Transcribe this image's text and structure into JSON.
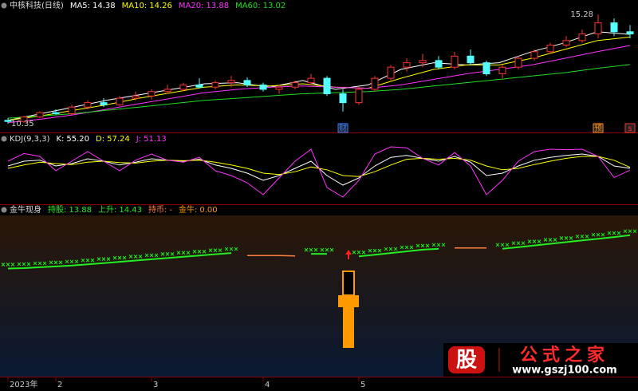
{
  "chart_data": [
    {
      "type": "candlestick",
      "title": "中核科技(日线)",
      "ylim": [
        10.17,
        15.5
      ],
      "up_color": "#ff3232",
      "down_color": "#54ffff",
      "candles": [
        [
          10.5,
          10.6,
          10.35,
          10.45
        ],
        [
          10.45,
          10.7,
          10.4,
          10.65
        ],
        [
          10.65,
          10.9,
          10.6,
          10.85
        ],
        [
          10.85,
          11.0,
          10.75,
          10.8
        ],
        [
          10.8,
          11.2,
          10.75,
          11.1
        ],
        [
          11.1,
          11.4,
          11.0,
          11.3
        ],
        [
          11.3,
          11.5,
          11.1,
          11.2
        ],
        [
          11.2,
          11.6,
          11.15,
          11.5
        ],
        [
          11.5,
          11.8,
          11.4,
          11.6
        ],
        [
          11.6,
          11.9,
          11.45,
          11.8
        ],
        [
          11.8,
          12.1,
          11.7,
          11.9
        ],
        [
          11.9,
          12.2,
          11.8,
          12.1
        ],
        [
          12.1,
          12.4,
          11.95,
          12.0
        ],
        [
          12.0,
          12.3,
          11.9,
          12.2
        ],
        [
          12.2,
          12.5,
          12.0,
          12.3
        ],
        [
          12.3,
          12.45,
          12.0,
          12.1
        ],
        [
          12.1,
          12.2,
          11.8,
          11.9
        ],
        [
          11.9,
          12.1,
          11.7,
          12.0
        ],
        [
          12.0,
          12.3,
          11.9,
          12.2
        ],
        [
          12.2,
          12.6,
          12.1,
          12.4
        ],
        [
          12.4,
          12.5,
          11.6,
          11.7
        ],
        [
          11.7,
          11.9,
          10.9,
          11.3
        ],
        [
          11.3,
          12.0,
          11.2,
          11.9
        ],
        [
          11.9,
          12.5,
          11.8,
          12.4
        ],
        [
          12.4,
          13.0,
          12.3,
          12.9
        ],
        [
          12.9,
          13.3,
          12.7,
          13.1
        ],
        [
          13.1,
          13.5,
          12.9,
          13.2
        ],
        [
          13.2,
          13.4,
          12.8,
          12.9
        ],
        [
          12.9,
          13.6,
          12.8,
          13.4
        ],
        [
          13.4,
          13.7,
          13.0,
          13.1
        ],
        [
          13.1,
          13.2,
          12.5,
          12.6
        ],
        [
          12.6,
          13.0,
          12.4,
          12.9
        ],
        [
          12.9,
          13.4,
          12.8,
          13.3
        ],
        [
          13.3,
          13.7,
          13.2,
          13.6
        ],
        [
          13.6,
          14.0,
          13.5,
          13.9
        ],
        [
          13.9,
          14.3,
          13.8,
          14.1
        ],
        [
          14.1,
          14.6,
          14.0,
          14.4
        ],
        [
          14.4,
          15.28,
          14.2,
          14.9
        ],
        [
          14.9,
          15.1,
          14.3,
          14.5
        ],
        [
          14.5,
          14.8,
          14.2,
          14.4
        ]
      ],
      "high_mark": {
        "value": 15.28,
        "index": 37
      },
      "low_mark": {
        "value": 10.35,
        "index": 0
      },
      "ma": [
        {
          "name": "MA5:",
          "color": "#ffffff",
          "value": 14.38,
          "values": [
            10.5,
            10.8,
            11.1,
            11.4,
            11.65,
            11.9,
            12.15,
            12.2,
            12.0,
            12.3,
            11.9,
            12.1,
            12.8,
            13.1,
            13.0,
            13.1,
            13.6,
            14.0,
            14.5,
            14.38
          ]
        },
        {
          "name": "MA10:",
          "color": "#ffff00",
          "value": 14.26,
          "values": [
            10.5,
            10.7,
            10.95,
            11.2,
            11.5,
            11.75,
            12.0,
            12.1,
            12.05,
            12.15,
            12.0,
            11.95,
            12.4,
            12.8,
            13.0,
            13.0,
            13.3,
            13.7,
            14.1,
            14.26
          ]
        },
        {
          "name": "MA20:",
          "color": "#ff33ff",
          "value": 13.88,
          "values": [
            10.4,
            10.55,
            10.75,
            11.0,
            11.25,
            11.5,
            11.75,
            11.9,
            12.0,
            12.05,
            12.0,
            11.95,
            12.1,
            12.35,
            12.6,
            12.8,
            13.0,
            13.3,
            13.6,
            13.88
          ]
        },
        {
          "name": "MA60:",
          "color": "#22dd22",
          "value": 13.02,
          "values": [
            10.6,
            10.7,
            10.8,
            10.95,
            11.1,
            11.25,
            11.4,
            11.5,
            11.6,
            11.7,
            11.75,
            11.8,
            11.9,
            12.05,
            12.2,
            12.35,
            12.5,
            12.65,
            12.85,
            13.02
          ]
        }
      ],
      "events": [
        {
          "label": "财",
          "index": 21,
          "color": "#3a7dff"
        },
        {
          "label": "预",
          "index": 37,
          "color": "#ff8c1a"
        },
        {
          "label": "s",
          "index": 39,
          "color": "#ff3232"
        }
      ],
      "months": [
        {
          "label": "2023年",
          "index": 0
        },
        {
          "label": "2",
          "index": 3
        },
        {
          "label": "3",
          "index": 9
        },
        {
          "label": "4",
          "index": 16
        },
        {
          "label": "5",
          "index": 22
        }
      ]
    },
    {
      "type": "line",
      "title": "KDJ(9,3,3)",
      "ylim": [
        -10,
        110
      ],
      "series": [
        {
          "name": "K:",
          "color": "#ffffff",
          "value": 55.2,
          "value_label": "55.20",
          "values": [
            60,
            70,
            72,
            60,
            65,
            75,
            70,
            62,
            68,
            75,
            72,
            70,
            74,
            62,
            55,
            45,
            30,
            40,
            55,
            70,
            40,
            20,
            35,
            60,
            78,
            82,
            76,
            70,
            80,
            68,
            40,
            45,
            60,
            72,
            78,
            82,
            85,
            80,
            60,
            55.2
          ]
        },
        {
          "name": "D:",
          "color": "#ffff00",
          "value": 57.24,
          "values": [
            55,
            62,
            68,
            65,
            63,
            68,
            70,
            67,
            66,
            70,
            72,
            71,
            72,
            68,
            62,
            55,
            45,
            42,
            48,
            58,
            52,
            40,
            38,
            48,
            62,
            74,
            76,
            74,
            76,
            72,
            60,
            52,
            55,
            63,
            70,
            76,
            80,
            80,
            72,
            57.24
          ]
        },
        {
          "name": "J:",
          "color": "#ff33ff",
          "value": 51.13,
          "values": [
            70,
            86,
            80,
            50,
            70,
            90,
            70,
            50,
            72,
            85,
            72,
            68,
            78,
            50,
            40,
            25,
            0,
            35,
            70,
            95,
            15,
            -5,
            30,
            85,
            100,
            98,
            76,
            62,
            88,
            60,
            0,
            30,
            70,
            90,
            95,
            94,
            95,
            80,
            36,
            51.13
          ]
        }
      ]
    },
    {
      "type": "signal",
      "title": "金牛现身",
      "ylim": [
        -2.45,
        16.78
      ],
      "series": [
        {
          "name": "持股:",
          "color": "#22ee22",
          "value": 13.88,
          "values": [
            10.45,
            10.5,
            10.6,
            10.7,
            10.8,
            10.95,
            11.1,
            11.25,
            11.4,
            11.55,
            11.7,
            11.85,
            12.0,
            12.15,
            12.3,
            null,
            null,
            null,
            null,
            12.2,
            12.2,
            null,
            11.9,
            12.1,
            12.3,
            12.5,
            12.7,
            12.8,
            null,
            null,
            null,
            12.8,
            13.0,
            13.2,
            13.4,
            13.6,
            13.8,
            14.0,
            14.2,
            14.43
          ]
        },
        {
          "name": "上升:",
          "color": "#22ee22",
          "value": 14.43
        },
        {
          "name": "持币:",
          "color": "#ff8040",
          "value_label": "-",
          "values": [
            null,
            null,
            null,
            null,
            null,
            null,
            null,
            null,
            null,
            null,
            null,
            null,
            null,
            null,
            null,
            12.0,
            12.0,
            12.0,
            11.95,
            null,
            null,
            11.95,
            null,
            null,
            null,
            null,
            null,
            null,
            12.9,
            12.9,
            12.9,
            null,
            null,
            null,
            null,
            null,
            null,
            null,
            null,
            null
          ]
        },
        {
          "name": "金牛:",
          "color": "#ff9900",
          "value": 0,
          "value_label": "0.00"
        }
      ]
    }
  ],
  "watermark": {
    "icon": "股",
    "text": "公式之家",
    "url": "www.gszj100.com"
  }
}
